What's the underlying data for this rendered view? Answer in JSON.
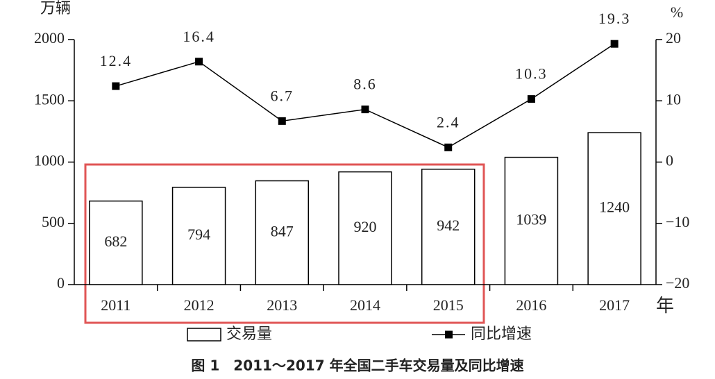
{
  "chart_data": {
    "type": "bar",
    "title": "图 1　2011～2017 年全国二手车交易量及同比增速",
    "y_label": "万辆",
    "y2_label": "%",
    "x_label": "年",
    "categories": [
      "2011",
      "2012",
      "2013",
      "2014",
      "2015",
      "2016",
      "2017"
    ],
    "series": [
      {
        "name": "交易量",
        "type": "bar",
        "color": "#ffffff",
        "values": [
          682,
          794,
          847,
          920,
          942,
          1039,
          1240
        ]
      },
      {
        "name": "同比增速",
        "type": "line",
        "axis": "y2",
        "color": "#000000",
        "values": [
          12.4,
          16.4,
          6.7,
          8.6,
          2.4,
          10.3,
          19.3
        ]
      }
    ],
    "ylim": [
      0,
      2000
    ],
    "yticks": [
      0,
      500,
      1000,
      1500,
      2000
    ],
    "y2lim": [
      -20,
      20
    ],
    "y2ticks": [
      {
        "value": -20,
        "label": "−20"
      },
      {
        "value": -10,
        "label": "−10"
      },
      0,
      10,
      20
    ],
    "grid": false
  }
}
